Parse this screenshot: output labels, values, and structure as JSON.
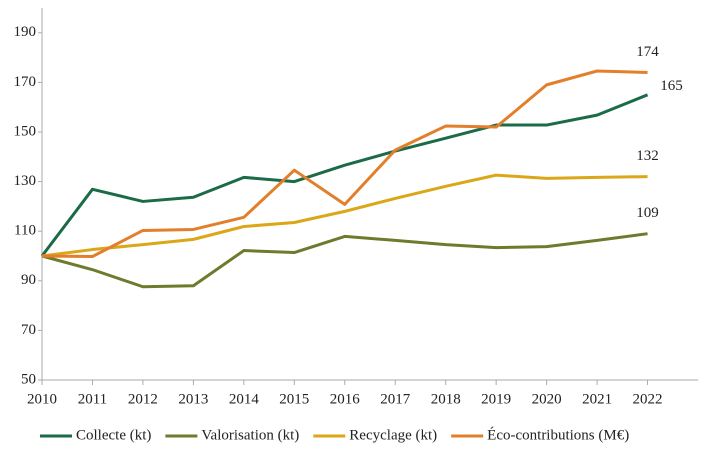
{
  "chart_data": {
    "type": "line",
    "x": [
      2010,
      2011,
      2012,
      2013,
      2014,
      2015,
      2016,
      2017,
      2018,
      2019,
      2020,
      2021,
      2022
    ],
    "xlim": [
      2010,
      2023
    ],
    "xticks": [
      2010,
      2011,
      2012,
      2013,
      2014,
      2015,
      2016,
      2017,
      2018,
      2019,
      2020,
      2021,
      2022
    ],
    "ylim": [
      50,
      200
    ],
    "yticks": [
      50,
      70,
      90,
      110,
      130,
      150,
      170,
      190
    ],
    "grid": false,
    "legend": "bottom",
    "series": [
      {
        "name": "Collecte (kt)",
        "color": "#1b6b47",
        "values": [
          100,
          126.9,
          122,
          123.7,
          131.7,
          130,
          136.6,
          142.3,
          147.5,
          152.8,
          152.8,
          156.8,
          165
        ],
        "value_labels": [
          null,
          null,
          null,
          null,
          null,
          null,
          null,
          null,
          null,
          null,
          null,
          null,
          "165"
        ]
      },
      {
        "name": "Valorisation (kt)",
        "color": "#6e7a2c",
        "values": [
          100,
          94.5,
          87.6,
          88,
          102.2,
          101.4,
          107.9,
          106.3,
          104.6,
          103.4,
          103.8,
          106.3,
          109
        ],
        "value_labels": [
          null,
          null,
          null,
          null,
          null,
          null,
          null,
          null,
          null,
          null,
          null,
          null,
          "109"
        ]
      },
      {
        "name": "Recyclage (kt)",
        "color": "#dba718",
        "values": [
          100,
          102.6,
          104.6,
          106.7,
          111.9,
          113.5,
          118,
          123.2,
          128.1,
          132.6,
          131.3,
          131.7,
          132
        ],
        "value_labels": [
          null,
          null,
          null,
          null,
          null,
          null,
          null,
          null,
          null,
          null,
          null,
          null,
          "132"
        ]
      },
      {
        "name": "Éco-contributions (M€)",
        "color": "#e37f2b",
        "values": [
          100,
          99.8,
          110.3,
          110.7,
          115.6,
          134.6,
          120.8,
          142.7,
          152.4,
          152,
          169,
          174.6,
          174
        ],
        "value_labels": [
          null,
          null,
          null,
          null,
          null,
          null,
          null,
          null,
          null,
          null,
          null,
          null,
          "174"
        ]
      }
    ]
  }
}
